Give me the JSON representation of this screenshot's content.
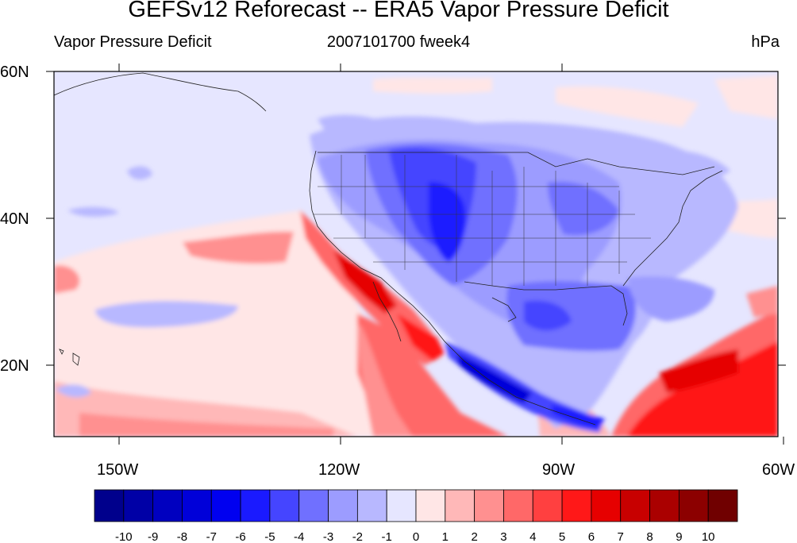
{
  "title": "GEFSv12 Reforecast -- ERA5 Vapor Pressure Deficit",
  "subtitle_left": "Vapor Pressure Deficit",
  "subtitle_center": "2007101700 fweek4",
  "subtitle_right": "hPa",
  "lat_labels": [
    "60N",
    "40N",
    "20N"
  ],
  "lon_labels": [
    "150W",
    "120W",
    "90W",
    "60W"
  ],
  "colorbar": {
    "ticks": [
      "-10",
      "-9",
      "-8",
      "-7",
      "-6",
      "-5",
      "-4",
      "-3",
      "-2",
      "-1",
      "0",
      "1",
      "2",
      "3",
      "4",
      "5",
      "6",
      "7",
      "8",
      "9",
      "10"
    ],
    "colors": [
      "#00008c",
      "#0000a6",
      "#0000c0",
      "#0000d9",
      "#0000f0",
      "#1a1aff",
      "#4545ff",
      "#7070ff",
      "#9c9cff",
      "#b8b8ff",
      "#e6e6ff",
      "#ffe6e6",
      "#ffb8b8",
      "#ff9090",
      "#ff6868",
      "#ff4040",
      "#ff1818",
      "#e60000",
      "#c80000",
      "#aa0000",
      "#8c0000",
      "#700000"
    ]
  },
  "map_colors": {
    "ocean_base": "#e6e6ff",
    "coast_warm": "#ff4040",
    "land_cool": "#4545ff"
  }
}
